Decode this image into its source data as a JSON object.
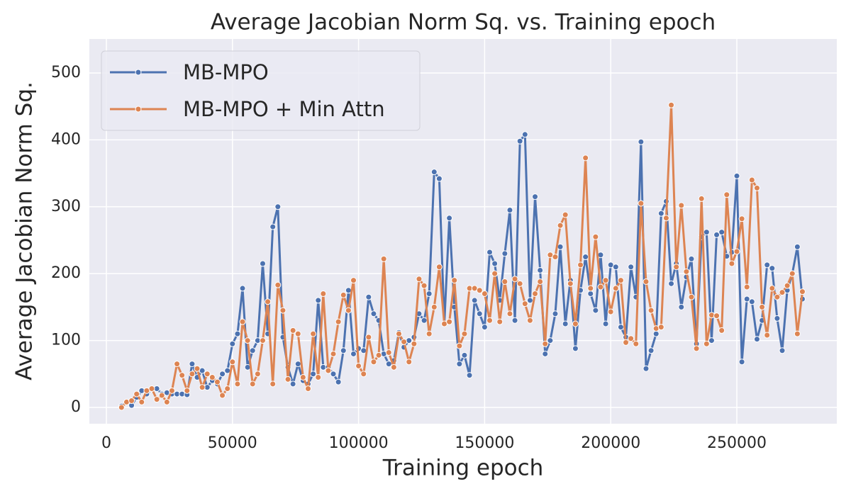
{
  "chart_data": {
    "type": "line",
    "title": "Average Jacobian Norm Sq. vs. Training epoch",
    "xlabel": "Training epoch",
    "ylabel": "Average Jacobian Norm Sq.",
    "x": [
      6000,
      8000,
      10000,
      12000,
      14000,
      16000,
      18000,
      20000,
      22000,
      24000,
      26000,
      28000,
      30000,
      32000,
      34000,
      36000,
      38000,
      40000,
      42000,
      44000,
      46000,
      48000,
      50000,
      52000,
      54000,
      56000,
      58000,
      60000,
      62000,
      64000,
      66000,
      68000,
      70000,
      72000,
      74000,
      76000,
      78000,
      80000,
      82000,
      84000,
      86000,
      88000,
      90000,
      92000,
      94000,
      96000,
      98000,
      100000,
      102000,
      104000,
      106000,
      108000,
      110000,
      112000,
      114000,
      116000,
      118000,
      120000,
      122000,
      124000,
      126000,
      128000,
      130000,
      132000,
      134000,
      136000,
      138000,
      140000,
      142000,
      144000,
      146000,
      148000,
      150000,
      152000,
      154000,
      156000,
      158000,
      160000,
      162000,
      164000,
      166000,
      168000,
      170000,
      172000,
      174000,
      176000,
      178000,
      180000,
      182000,
      184000,
      186000,
      188000,
      190000,
      192000,
      194000,
      196000,
      198000,
      200000,
      202000,
      204000,
      206000,
      208000,
      210000,
      212000,
      214000,
      216000,
      218000,
      220000,
      222000,
      224000,
      226000,
      228000,
      230000,
      232000,
      234000,
      236000,
      238000,
      240000,
      242000,
      244000,
      246000,
      248000,
      250000,
      252000,
      254000,
      256000,
      258000,
      260000,
      262000,
      264000,
      266000,
      268000,
      270000,
      272000,
      274000,
      276000
    ],
    "series": [
      {
        "name": "MB-MPO",
        "color": "#4c72b0",
        "values": [
          2,
          8,
          3,
          15,
          25,
          20,
          27,
          28,
          20,
          22,
          20,
          20,
          20,
          19,
          65,
          45,
          55,
          30,
          40,
          35,
          50,
          55,
          95,
          110,
          178,
          60,
          85,
          100,
          215,
          110,
          270,
          300,
          105,
          60,
          35,
          65,
          40,
          35,
          50,
          160,
          60,
          60,
          50,
          38,
          85,
          175,
          80,
          88,
          85,
          165,
          140,
          130,
          80,
          65,
          70,
          112,
          90,
          100,
          105,
          140,
          130,
          170,
          352,
          342,
          125,
          283,
          150,
          65,
          78,
          48,
          160,
          140,
          120,
          232,
          215,
          160,
          230,
          295,
          130,
          398,
          408,
          160,
          315,
          205,
          80,
          100,
          140,
          240,
          125,
          190,
          88,
          175,
          225,
          170,
          145,
          228,
          125,
          213,
          210,
          120,
          105,
          210,
          165,
          397,
          58,
          85,
          110,
          290,
          308,
          185,
          215,
          150,
          195,
          222,
          95,
          255,
          262,
          100,
          258,
          262,
          226,
          232,
          346,
          68,
          162,
          158,
          102,
          130,
          213,
          208,
          133,
          85,
          175,
          200,
          240,
          162
        ]
      },
      {
        "name": "MB-MPO + Min Attn",
        "color": "#dd8452",
        "values": [
          0,
          8,
          10,
          20,
          8,
          25,
          28,
          12,
          18,
          8,
          25,
          65,
          48,
          25,
          50,
          58,
          30,
          50,
          45,
          38,
          18,
          28,
          68,
          35,
          128,
          100,
          35,
          50,
          100,
          158,
          35,
          183,
          145,
          42,
          115,
          110,
          45,
          28,
          110,
          45,
          170,
          55,
          80,
          128,
          168,
          145,
          190,
          62,
          50,
          105,
          68,
          78,
          222,
          82,
          60,
          110,
          98,
          68,
          95,
          192,
          182,
          110,
          150,
          210,
          125,
          128,
          190,
          92,
          110,
          178,
          178,
          175,
          170,
          130,
          200,
          128,
          188,
          140,
          192,
          185,
          155,
          130,
          170,
          188,
          95,
          228,
          225,
          272,
          288,
          185,
          125,
          213,
          373,
          178,
          255,
          180,
          190,
          143,
          178,
          190,
          97,
          103,
          95,
          305,
          188,
          145,
          118,
          120,
          283,
          452,
          210,
          302,
          203,
          165,
          88,
          312,
          95,
          138,
          137,
          115,
          318,
          215,
          233,
          282,
          180,
          340,
          328,
          150,
          108,
          178,
          165,
          172,
          182,
          200,
          110,
          173
        ]
      }
    ],
    "xlim": [
      -6750,
      289650
    ],
    "ylim": [
      -24.4,
      550.8
    ],
    "xticks": [
      0,
      50000,
      100000,
      150000,
      200000,
      250000
    ],
    "yticks": [
      0,
      100,
      200,
      300,
      400,
      500
    ],
    "grid": true,
    "legend": "upper left"
  }
}
